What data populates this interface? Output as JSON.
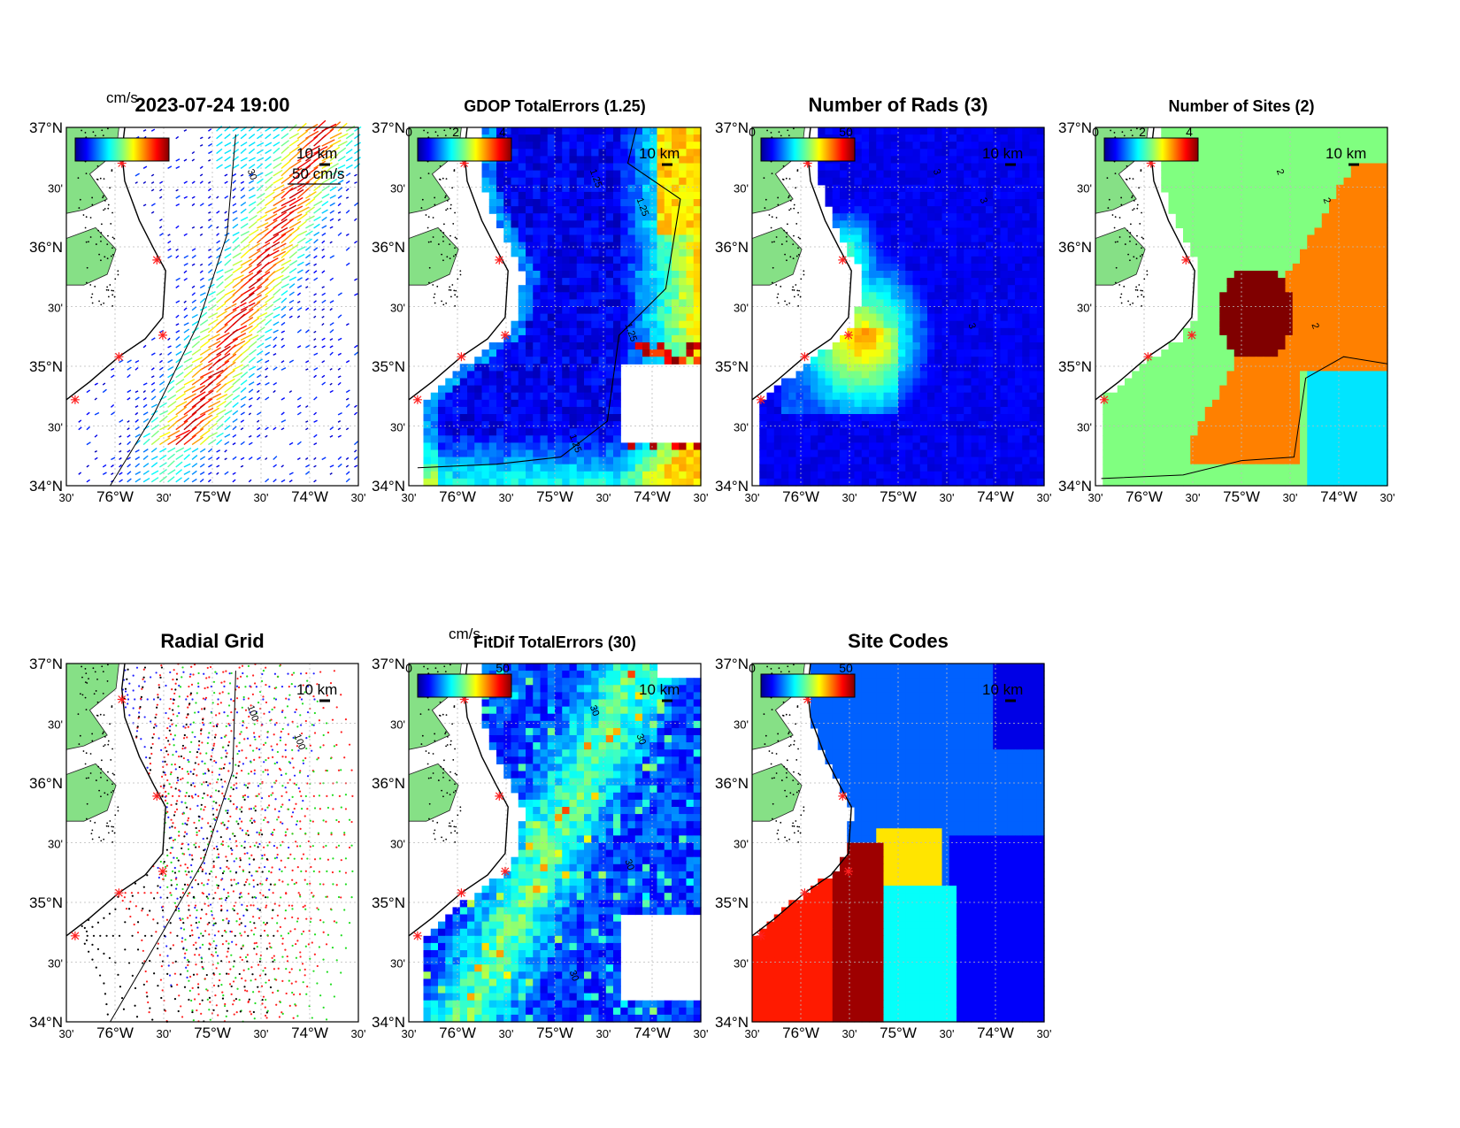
{
  "figure": {
    "panels": [
      {
        "id": "currents",
        "title": "2023-07-24 19:00",
        "colorbar_units": "cm/s",
        "colorbar_ticks": [],
        "colorbar_colormap": "jet",
        "vector_scale_label": "50 cm/s",
        "scale_bar_label": "10 km",
        "contour_labels": [
          "30"
        ],
        "field": "currents"
      },
      {
        "id": "gdop",
        "title": "GDOP TotalErrors (1.25)",
        "colorbar_units": "",
        "colorbar_ticks": [
          "0",
          "2",
          "4"
        ],
        "colorbar_colormap": "jet",
        "scale_bar_label": "10 km",
        "contour_labels": [
          "1.25",
          "1.25",
          "1.25",
          "1.25"
        ],
        "field": "gdop"
      },
      {
        "id": "nrads",
        "title": "Number of Rads (3)",
        "colorbar_units": "",
        "colorbar_ticks": [
          "0",
          "50"
        ],
        "colorbar_colormap": "jet",
        "scale_bar_label": "10 km",
        "contour_labels": [
          "3",
          "3",
          "3"
        ],
        "field": "nrads"
      },
      {
        "id": "nsites",
        "title": "Number of Sites (2)",
        "colorbar_units": "",
        "colorbar_ticks": [
          "0",
          "2",
          "4"
        ],
        "colorbar_colormap": "jet",
        "scale_bar_label": "10 km",
        "contour_labels": [
          "2",
          "2",
          "2"
        ],
        "field": "nsites"
      },
      {
        "id": "radgrid",
        "title": "Radial Grid",
        "colorbar_units": "",
        "colorbar_ticks": [],
        "colorbar_colormap": "",
        "scale_bar_label": "10 km",
        "contour_labels": [
          "100",
          "100"
        ],
        "field": "radgrid"
      },
      {
        "id": "fitdif",
        "title": "FitDif TotalErrors (30)",
        "colorbar_units": "cm/s",
        "colorbar_ticks": [
          "0",
          "50"
        ],
        "colorbar_colormap": "jet",
        "scale_bar_label": "10 km",
        "contour_labels": [
          "30",
          "30",
          "30",
          "30"
        ],
        "field": "fitdif"
      },
      {
        "id": "sitecodes",
        "title": "Site Codes",
        "colorbar_units": "",
        "colorbar_ticks": [
          "0",
          "50"
        ],
        "colorbar_colormap": "jet",
        "scale_bar_label": "10 km",
        "contour_labels": [],
        "field": "sitecodes"
      }
    ],
    "axes": {
      "lat_ticks": [
        "37°N",
        "30'",
        "36°N",
        "30'",
        "35°N",
        "30'",
        "34°N"
      ],
      "lon_ticks": [
        "30'",
        "76°W",
        "30'",
        "75°W",
        "30'",
        "74°W",
        "30'"
      ],
      "lat_range": [
        34,
        37
      ],
      "lon_range": [
        -76.5,
        -73.5
      ]
    },
    "colors": {
      "land": "#86e086",
      "coast": "#000000",
      "site_marker": "#ff2020",
      "grid": "#bbbbbb"
    }
  }
}
